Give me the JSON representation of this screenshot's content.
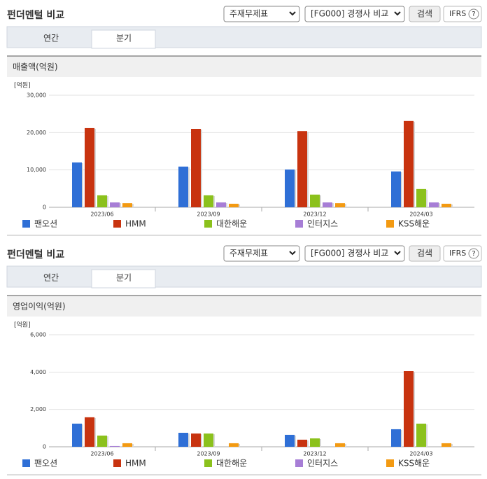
{
  "panels": [
    {
      "header": {
        "title": "펀더멘털 비교",
        "statement": "주재무제표",
        "compare": "[FG000] 경쟁사 비교",
        "search": "검색",
        "ifrs": "IFRS",
        "help": "?"
      },
      "tabs": [
        "연간",
        "분기"
      ]
    },
    {
      "header": {
        "title": "펀더멘털 비교",
        "statement": "주재무제표",
        "compare": "[FG000] 경쟁사 비교",
        "search": "검색",
        "ifrs": "IFRS",
        "help": "?"
      },
      "tabs": [
        "연간",
        "분기"
      ]
    }
  ],
  "chart_data": [
    {
      "type": "bar",
      "title": "매출액(억원)",
      "y_unit": "[억원]",
      "categories": [
        "2023/06",
        "2023/09",
        "2023/12",
        "2024/03"
      ],
      "series": [
        {
          "name": "팬오션",
          "color": "#2f6fd6",
          "values": [
            12000,
            10900,
            10100,
            9600
          ]
        },
        {
          "name": "HMM",
          "color": "#c8330f",
          "values": [
            21200,
            21000,
            20400,
            23100
          ]
        },
        {
          "name": "대한해운",
          "color": "#8bc11c",
          "values": [
            3200,
            3200,
            3400,
            4900
          ]
        },
        {
          "name": "인터지스",
          "color": "#a77ed6",
          "values": [
            1300,
            1300,
            1300,
            1300
          ]
        },
        {
          "name": "KSS해운",
          "color": "#f39a12",
          "values": [
            1100,
            950,
            1100,
            950
          ]
        }
      ],
      "ylim": [
        0,
        30000
      ],
      "yticks": [
        0,
        {
          "value": 10000,
          "label": "10,000"
        },
        {
          "value": 20000,
          "label": "20,000"
        },
        {
          "value": 30000,
          "label": "30,000"
        }
      ],
      "grid": true
    },
    {
      "type": "bar",
      "title": "영업이익(억원)",
      "y_unit": "[억원]",
      "categories": [
        "2023/06",
        "2023/09",
        "2023/12",
        "2024/03"
      ],
      "series": [
        {
          "name": "팬오션",
          "color": "#2f6fd6",
          "values": [
            1240,
            750,
            640,
            940
          ]
        },
        {
          "name": "HMM",
          "color": "#c8330f",
          "values": [
            1580,
            710,
            380,
            4050
          ]
        },
        {
          "name": "대한해운",
          "color": "#8bc11c",
          "values": [
            600,
            710,
            450,
            1240
          ]
        },
        {
          "name": "인터지스",
          "color": "#a77ed6",
          "values": [
            40,
            0,
            0,
            0
          ]
        },
        {
          "name": "KSS해운",
          "color": "#f39a12",
          "values": [
            190,
            190,
            190,
            190
          ]
        }
      ],
      "ylim": [
        0,
        6000
      ],
      "yticks": [
        0,
        {
          "value": 2000,
          "label": "2,000"
        },
        {
          "value": 4000,
          "label": "4,000"
        },
        {
          "value": 6000,
          "label": "6,000"
        }
      ],
      "grid": true
    }
  ]
}
